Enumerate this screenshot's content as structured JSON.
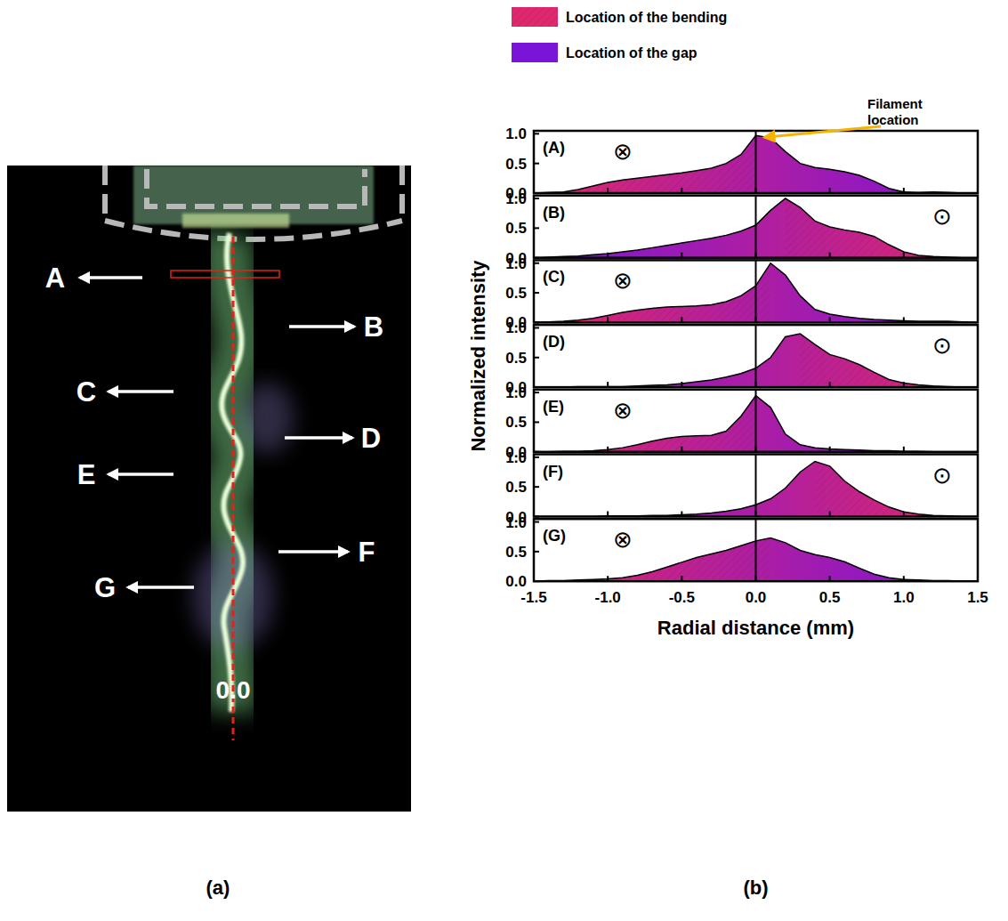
{
  "figure": {
    "panel_labels": [
      "(a)",
      "(b)"
    ],
    "legend": [
      {
        "name": "Location of the bending",
        "color": "#e0286e"
      },
      {
        "name": "Location of the gap",
        "color": "#7a14d8"
      }
    ],
    "annotation": "Filament location",
    "xlabel": "Radial distance (mm)",
    "ylabel": "Normalized intensity"
  },
  "photo": {
    "labels": [
      {
        "text": "A",
        "side": "left"
      },
      {
        "text": "B",
        "side": "right"
      },
      {
        "text": "C",
        "side": "left"
      },
      {
        "text": "D",
        "side": "right"
      },
      {
        "text": "E",
        "side": "left"
      },
      {
        "text": "F",
        "side": "right"
      },
      {
        "text": "G",
        "side": "left"
      }
    ],
    "axis_label": "0.0"
  },
  "chart_data": [
    {
      "type": "area",
      "title": "(A)",
      "annotation": "⊗",
      "x": [
        -1.5,
        -1.4,
        -1.3,
        -1.2,
        -1.1,
        -1.0,
        -0.9,
        -0.8,
        -0.7,
        -0.6,
        -0.5,
        -0.4,
        -0.3,
        -0.2,
        -0.1,
        0.0,
        0.1,
        0.2,
        0.3,
        0.4,
        0.5,
        0.6,
        0.7,
        0.8,
        0.9,
        1.0,
        1.1,
        1.2,
        1.3,
        1.4,
        1.5
      ],
      "values": [
        0.0,
        0.01,
        0.02,
        0.06,
        0.12,
        0.18,
        0.22,
        0.25,
        0.28,
        0.31,
        0.34,
        0.38,
        0.42,
        0.5,
        0.65,
        0.97,
        0.93,
        0.7,
        0.5,
        0.43,
        0.4,
        0.36,
        0.3,
        0.2,
        0.08,
        0.02,
        0.01,
        0.02,
        0.01,
        0.0,
        0.0
      ],
      "colors": [
        "#e0286e",
        "#7a14d8"
      ],
      "xlim": [
        -1.5,
        1.5
      ],
      "ylim": [
        0,
        1.05
      ],
      "xticks": [
        -1.5,
        {
          "value": -1,
          "label": "-1.0"
        },
        -0.5,
        {
          "value": 0,
          "label": "0.0"
        },
        0.5,
        {
          "value": 1,
          "label": "1.0"
        },
        1.5
      ],
      "yticks": [
        {
          "value": 0,
          "label": "0.0"
        },
        0.5,
        {
          "value": 1,
          "label": "1.0"
        }
      ],
      "tick_labels": "y"
    },
    {
      "type": "area",
      "title": "(B)",
      "annotation": "⊙",
      "x": [
        -1.5,
        -1.4,
        -1.3,
        -1.2,
        -1.1,
        -1.0,
        -0.9,
        -0.8,
        -0.7,
        -0.6,
        -0.5,
        -0.4,
        -0.3,
        -0.2,
        -0.1,
        0.0,
        0.1,
        0.2,
        0.3,
        0.4,
        0.5,
        0.6,
        0.7,
        0.8,
        0.9,
        1.0,
        1.1,
        1.2,
        1.3,
        1.4,
        1.5
      ],
      "values": [
        0.0,
        0.01,
        0.02,
        0.03,
        0.05,
        0.07,
        0.1,
        0.13,
        0.17,
        0.21,
        0.25,
        0.29,
        0.33,
        0.38,
        0.45,
        0.55,
        0.8,
        1.0,
        0.85,
        0.62,
        0.52,
        0.47,
        0.43,
        0.36,
        0.22,
        0.1,
        0.04,
        0.02,
        0.01,
        0.0,
        0.0
      ],
      "colors": [
        "#7a14d8",
        "#e0286e"
      ],
      "xlim": [
        -1.5,
        1.5
      ],
      "ylim": [
        0,
        1.05
      ],
      "xticks": [
        -1.5,
        {
          "value": -1,
          "label": "-1.0"
        },
        -0.5,
        {
          "value": 0,
          "label": "0.0"
        },
        0.5,
        {
          "value": 1,
          "label": "1.0"
        },
        1.5
      ],
      "yticks": [
        {
          "value": 0,
          "label": "0.0"
        },
        0.5,
        {
          "value": 1,
          "label": "1.0"
        }
      ],
      "tick_labels": "y"
    },
    {
      "type": "area",
      "title": "(C)",
      "annotation": "⊗",
      "x": [
        -1.5,
        -1.4,
        -1.3,
        -1.2,
        -1.1,
        -1.0,
        -0.9,
        -0.8,
        -0.7,
        -0.6,
        -0.5,
        -0.4,
        -0.3,
        -0.2,
        -0.1,
        0.0,
        0.1,
        0.2,
        0.3,
        0.4,
        0.5,
        0.6,
        0.7,
        0.8,
        0.9,
        1.0,
        1.1,
        1.2,
        1.3,
        1.4,
        1.5
      ],
      "values": [
        0.0,
        0.01,
        0.02,
        0.04,
        0.07,
        0.12,
        0.17,
        0.21,
        0.24,
        0.26,
        0.27,
        0.28,
        0.3,
        0.35,
        0.45,
        0.62,
        1.0,
        0.8,
        0.45,
        0.22,
        0.14,
        0.1,
        0.07,
        0.05,
        0.04,
        0.03,
        0.02,
        0.02,
        0.02,
        0.01,
        0.0
      ],
      "colors": [
        "#e0286e",
        "#7a14d8"
      ],
      "xlim": [
        -1.5,
        1.5
      ],
      "ylim": [
        0,
        1.05
      ],
      "xticks": [
        -1.5,
        {
          "value": -1,
          "label": "-1.0"
        },
        -0.5,
        {
          "value": 0,
          "label": "0.0"
        },
        0.5,
        {
          "value": 1,
          "label": "1.0"
        },
        1.5
      ],
      "yticks": [
        {
          "value": 0,
          "label": "0.0"
        },
        0.5,
        {
          "value": 1,
          "label": "1.0"
        }
      ],
      "tick_labels": "y"
    },
    {
      "type": "area",
      "title": "(D)",
      "annotation": "⊙",
      "x": [
        -1.5,
        -1.4,
        -1.3,
        -1.2,
        -1.1,
        -1.0,
        -0.9,
        -0.8,
        -0.7,
        -0.6,
        -0.5,
        -0.4,
        -0.3,
        -0.2,
        -0.1,
        0.0,
        0.1,
        0.2,
        0.3,
        0.4,
        0.5,
        0.6,
        0.7,
        0.8,
        0.9,
        1.0,
        1.1,
        1.2,
        1.3,
        1.4,
        1.5
      ],
      "values": [
        0.0,
        0.0,
        0.0,
        0.01,
        0.01,
        0.01,
        0.01,
        0.02,
        0.03,
        0.04,
        0.06,
        0.09,
        0.12,
        0.17,
        0.23,
        0.32,
        0.5,
        0.85,
        0.9,
        0.72,
        0.55,
        0.48,
        0.38,
        0.25,
        0.13,
        0.07,
        0.04,
        0.02,
        0.01,
        0.0,
        0.0
      ],
      "colors": [
        "#7a14d8",
        "#e0286e"
      ],
      "xlim": [
        -1.5,
        1.5
      ],
      "ylim": [
        0,
        1.05
      ],
      "xticks": [
        -1.5,
        {
          "value": -1,
          "label": "-1.0"
        },
        -0.5,
        {
          "value": 0,
          "label": "0.0"
        },
        0.5,
        {
          "value": 1,
          "label": "1.0"
        },
        1.5
      ],
      "yticks": [
        {
          "value": 0,
          "label": "0.0"
        },
        0.5,
        {
          "value": 1,
          "label": "1.0"
        }
      ],
      "tick_labels": "y"
    },
    {
      "type": "area",
      "title": "(E)",
      "annotation": "⊗",
      "x": [
        -1.5,
        -1.4,
        -1.3,
        -1.2,
        -1.1,
        -1.0,
        -0.9,
        -0.8,
        -0.7,
        -0.6,
        -0.5,
        -0.4,
        -0.3,
        -0.2,
        -0.1,
        0.0,
        0.1,
        0.2,
        0.3,
        0.4,
        0.5,
        0.6,
        0.7,
        0.8,
        0.9,
        1.0,
        1.1,
        1.2,
        1.3,
        1.4,
        1.5
      ],
      "values": [
        0.0,
        0.0,
        0.01,
        0.01,
        0.02,
        0.04,
        0.07,
        0.12,
        0.18,
        0.23,
        0.26,
        0.27,
        0.28,
        0.35,
        0.6,
        0.95,
        0.75,
        0.3,
        0.12,
        0.07,
        0.05,
        0.04,
        0.03,
        0.02,
        0.02,
        0.01,
        0.01,
        0.0,
        0.0,
        0.0,
        0.0
      ],
      "colors": [
        "#e0286e",
        "#7a14d8"
      ],
      "xlim": [
        -1.5,
        1.5
      ],
      "ylim": [
        0,
        1.05
      ],
      "xticks": [
        -1.5,
        {
          "value": -1,
          "label": "-1.0"
        },
        -0.5,
        {
          "value": 0,
          "label": "0.0"
        },
        0.5,
        {
          "value": 1,
          "label": "1.0"
        },
        1.5
      ],
      "yticks": [
        {
          "value": 0,
          "label": "0.0"
        },
        0.5,
        {
          "value": 1,
          "label": "1.0"
        }
      ],
      "tick_labels": "y"
    },
    {
      "type": "area",
      "title": "(F)",
      "annotation": "⊙",
      "x": [
        -1.5,
        -1.4,
        -1.3,
        -1.2,
        -1.1,
        -1.0,
        -0.9,
        -0.8,
        -0.7,
        -0.6,
        -0.5,
        -0.4,
        -0.3,
        -0.2,
        -0.1,
        0.0,
        0.1,
        0.2,
        0.3,
        0.4,
        0.5,
        0.6,
        0.7,
        0.8,
        0.9,
        1.0,
        1.1,
        1.2,
        1.3,
        1.4,
        1.5
      ],
      "values": [
        0.0,
        0.0,
        0.0,
        0.0,
        0.0,
        0.01,
        0.01,
        0.01,
        0.02,
        0.02,
        0.03,
        0.04,
        0.06,
        0.09,
        0.13,
        0.2,
        0.3,
        0.48,
        0.75,
        0.93,
        0.85,
        0.6,
        0.42,
        0.28,
        0.16,
        0.08,
        0.04,
        0.02,
        0.01,
        0.0,
        0.0
      ],
      "colors": [
        "#7a14d8",
        "#e0286e"
      ],
      "xlim": [
        -1.5,
        1.5
      ],
      "ylim": [
        0,
        1.05
      ],
      "xticks": [
        -1.5,
        {
          "value": -1,
          "label": "-1.0"
        },
        -0.5,
        {
          "value": 0,
          "label": "0.0"
        },
        0.5,
        {
          "value": 1,
          "label": "1.0"
        },
        1.5
      ],
      "yticks": [
        {
          "value": 0,
          "label": "0.0"
        },
        0.5,
        {
          "value": 1,
          "label": "1.0"
        }
      ],
      "tick_labels": "y"
    },
    {
      "type": "area",
      "title": "(G)",
      "annotation": "⊗",
      "x": [
        -1.5,
        -1.4,
        -1.3,
        -1.2,
        -1.1,
        -1.0,
        -0.9,
        -0.8,
        -0.7,
        -0.6,
        -0.5,
        -0.4,
        -0.3,
        -0.2,
        -0.1,
        0.0,
        0.1,
        0.2,
        0.3,
        0.4,
        0.5,
        0.6,
        0.7,
        0.8,
        0.9,
        1.0,
        1.1,
        1.2,
        1.3,
        1.4,
        1.5
      ],
      "values": [
        0.0,
        0.01,
        0.01,
        0.02,
        0.03,
        0.04,
        0.06,
        0.1,
        0.16,
        0.24,
        0.32,
        0.4,
        0.46,
        0.52,
        0.6,
        0.68,
        0.73,
        0.65,
        0.52,
        0.45,
        0.4,
        0.33,
        0.22,
        0.12,
        0.06,
        0.03,
        0.02,
        0.01,
        0.01,
        0.0,
        0.0
      ],
      "colors": [
        "#e0286e",
        "#7a14d8"
      ],
      "xlim": [
        -1.5,
        1.5
      ],
      "ylim": [
        0,
        1.05
      ],
      "xticks": [
        -1.5,
        {
          "value": -1,
          "label": "-1.0"
        },
        -0.5,
        {
          "value": 0,
          "label": "0.0"
        },
        0.5,
        {
          "value": 1,
          "label": "1.0"
        },
        1.5
      ],
      "yticks": [
        {
          "value": 0,
          "label": "0.0"
        },
        0.5,
        {
          "value": 1,
          "label": "1.0"
        }
      ]
    }
  ]
}
